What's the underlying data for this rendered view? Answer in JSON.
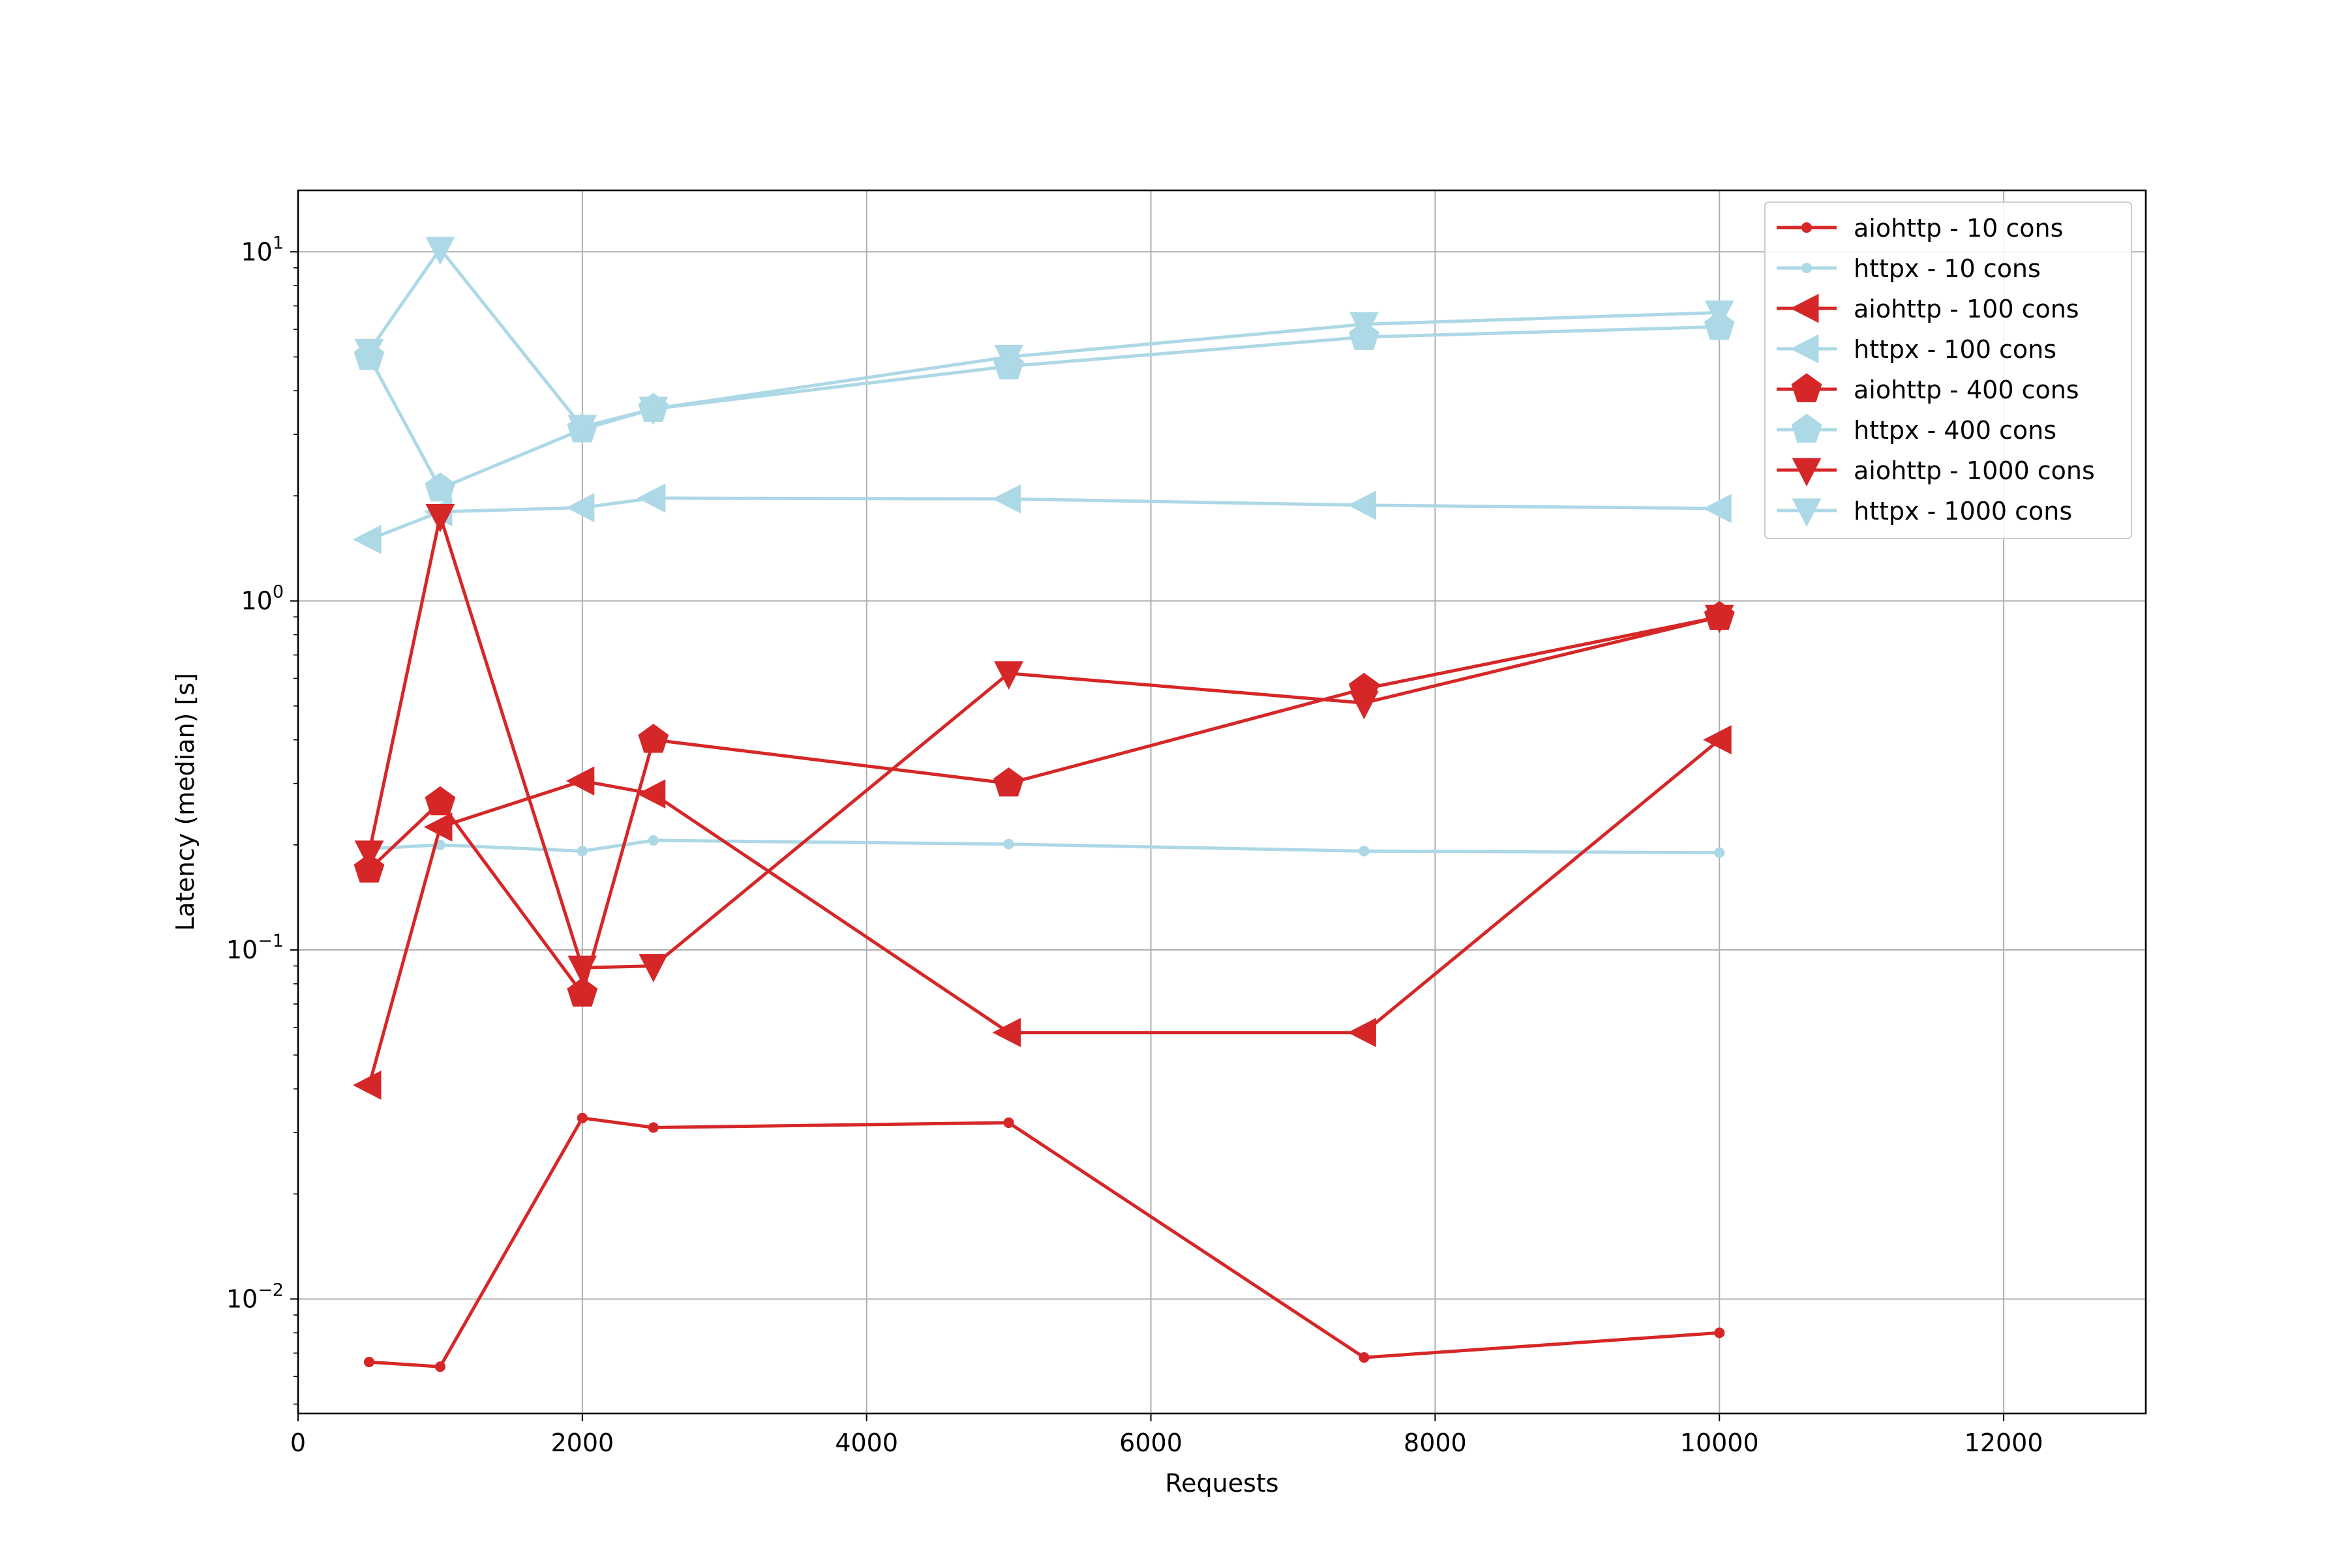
{
  "chart_data": {
    "type": "line",
    "title": "",
    "xlabel": "Requests",
    "ylabel": "Latency (median) [s]",
    "xlim": [
      0,
      13000
    ],
    "ylim": [
      0.0047,
      15
    ],
    "y_scale": "log",
    "grid": true,
    "legend_position": "top-right",
    "x_ticks": [
      0,
      2000,
      4000,
      6000,
      8000,
      10000,
      12000
    ],
    "x_tick_labels": [
      "0",
      "2000",
      "4000",
      "6000",
      "8000",
      "10000",
      "12000"
    ],
    "y_ticks": [
      0.01,
      0.1,
      1,
      10
    ],
    "y_tick_labels": [
      {
        "base": "10",
        "exp": "−2"
      },
      {
        "base": "10",
        "exp": "−1"
      },
      {
        "base": "10",
        "exp": "0"
      },
      {
        "base": "10",
        "exp": "1"
      }
    ],
    "x": [
      500,
      1000,
      2000,
      2500,
      5000,
      7500,
      10000
    ],
    "colors": {
      "aiohttp": "#d62728",
      "httpx": "#add8e6"
    },
    "series": [
      {
        "name": "aiohttp - 10 cons",
        "color": "#d62728",
        "marker": "circle",
        "values": [
          0.0066,
          0.0064,
          0.033,
          0.031,
          0.032,
          0.0068,
          0.008
        ]
      },
      {
        "name": "httpx - 10 cons",
        "color": "#add8e6",
        "marker": "circle",
        "values": [
          0.195,
          0.2,
          0.192,
          0.206,
          0.201,
          0.192,
          0.19
        ]
      },
      {
        "name": "aiohttp - 100 cons",
        "color": "#d62728",
        "marker": "triangle-left",
        "values": [
          0.041,
          0.225,
          0.305,
          0.28,
          0.058,
          0.058,
          0.4
        ]
      },
      {
        "name": "httpx - 100 cons",
        "color": "#add8e6",
        "marker": "triangle-left",
        "values": [
          1.5,
          1.8,
          1.85,
          1.97,
          1.96,
          1.88,
          1.84
        ]
      },
      {
        "name": "aiohttp - 400 cons",
        "color": "#d62728",
        "marker": "pentagon",
        "values": [
          0.17,
          0.265,
          0.075,
          0.4,
          0.3,
          0.56,
          0.9
        ]
      },
      {
        "name": "httpx - 400 cons",
        "color": "#add8e6",
        "marker": "pentagon",
        "values": [
          5.0,
          2.1,
          3.1,
          3.55,
          4.7,
          5.7,
          6.1
        ]
      },
      {
        "name": "aiohttp - 1000 cons",
        "color": "#d62728",
        "marker": "triangle-down",
        "values": [
          0.19,
          1.75,
          0.089,
          0.09,
          0.62,
          0.51,
          0.9
        ]
      },
      {
        "name": "httpx - 1000 cons",
        "color": "#add8e6",
        "marker": "triangle-down",
        "values": [
          5.2,
          10.2,
          3.15,
          3.55,
          5.0,
          6.2,
          6.7
        ]
      }
    ]
  }
}
